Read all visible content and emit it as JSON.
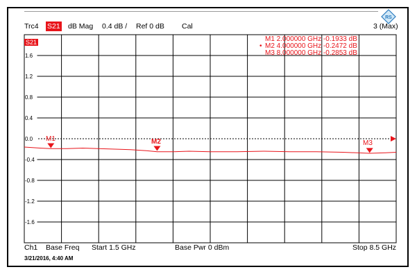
{
  "header": {
    "trace": "Trc4",
    "param": "S21",
    "format": "dB Mag",
    "scale": "0.4 dB /",
    "ref": "Ref 0 dB",
    "cal": "Cal",
    "max": "3 (Max)"
  },
  "trace_label": "S21",
  "markers": [
    {
      "name": "M1",
      "line": "M1 2.000000 GHz  -0.1933 dB"
    },
    {
      "name": "M2",
      "line": "M2 4.000000 GHz  -0.2472 dB"
    },
    {
      "name": "M3",
      "line": "M3 8.000000 GHz  -0.2853 dB"
    }
  ],
  "footer": {
    "ch": "Ch1",
    "base": "Base Freq",
    "start": "Start  1.5 GHz",
    "pwr": "Base Pwr   0 dBm",
    "stop": "Stop  8.5 GHz",
    "date": "3/21/2016, 4:40 AM"
  },
  "colors": {
    "trace": "#e8141a",
    "grid": "#000000",
    "bg": "#ffffff"
  },
  "chart_data": {
    "type": "line",
    "x_range_ghz": [
      1.5,
      8.5
    ],
    "ylim": [
      -2.0,
      2.0
    ],
    "yticks": [
      "1.6",
      "1.2",
      "0.8",
      "0.4",
      "0.0",
      "-0.4",
      "-0.8",
      "-1.2",
      "-1.6"
    ],
    "ytick_values": [
      1.6,
      1.2,
      0.8,
      0.4,
      0.0,
      -0.4,
      -0.8,
      -1.2,
      -1.6
    ],
    "series": [
      {
        "name": "S21",
        "x": [
          1.5,
          1.8,
          2.0,
          2.3,
          2.6,
          2.9,
          3.2,
          3.5,
          3.8,
          4.0,
          4.3,
          4.6,
          5.0,
          5.5,
          6.0,
          6.5,
          7.0,
          7.5,
          8.0,
          8.3,
          8.5
        ],
        "y": [
          -0.16,
          -0.18,
          -0.19,
          -0.19,
          -0.18,
          -0.19,
          -0.2,
          -0.21,
          -0.23,
          -0.25,
          -0.25,
          -0.24,
          -0.25,
          -0.25,
          -0.24,
          -0.25,
          -0.25,
          -0.26,
          -0.28,
          -0.27,
          -0.26
        ]
      }
    ],
    "markers": [
      {
        "name": "M1",
        "x": 2.0,
        "y": -0.1933
      },
      {
        "name": "M2",
        "x": 4.0,
        "y": -0.2472
      },
      {
        "name": "M3",
        "x": 8.0,
        "y": -0.2853
      }
    ]
  }
}
